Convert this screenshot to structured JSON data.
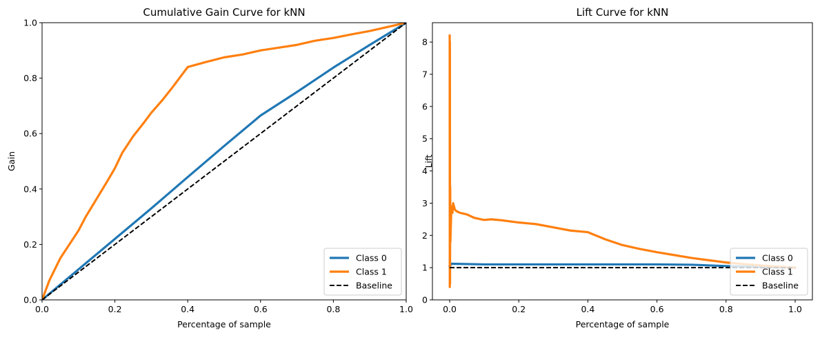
{
  "chart_data": [
    {
      "type": "line",
      "title": "Cumulative Gain Curve for kNN",
      "xlabel": "Percentage of sample",
      "ylabel": "Gain",
      "xlim": [
        0,
        1
      ],
      "ylim": [
        0,
        1
      ],
      "xticks": [
        "0.0",
        "0.2",
        "0.4",
        "0.6",
        "0.8",
        "1.0"
      ],
      "yticks": [
        "0.0",
        "0.2",
        "0.4",
        "0.6",
        "0.8",
        "1.0"
      ],
      "grid": false,
      "legend_position": "lower right",
      "series": [
        {
          "name": "Class 0",
          "color": "#1f77b4",
          "style": "solid",
          "x": [
            0,
            0.1,
            0.2,
            0.3,
            0.4,
            0.5,
            0.6,
            0.7,
            0.8,
            0.9,
            1.0
          ],
          "y": [
            0,
            0.11,
            0.22,
            0.33,
            0.443,
            0.555,
            0.665,
            0.75,
            0.838,
            0.92,
            1.0
          ]
        },
        {
          "name": "Class 1",
          "color": "#ff7f0e",
          "style": "solid",
          "x": [
            0,
            0.02,
            0.05,
            0.08,
            0.1,
            0.12,
            0.15,
            0.18,
            0.2,
            0.22,
            0.25,
            0.28,
            0.3,
            0.33,
            0.36,
            0.38,
            0.4,
            0.45,
            0.5,
            0.55,
            0.6,
            0.65,
            0.7,
            0.75,
            0.8,
            0.85,
            0.9,
            0.95,
            1.0
          ],
          "y": [
            0,
            0.07,
            0.15,
            0.21,
            0.25,
            0.3,
            0.365,
            0.43,
            0.475,
            0.53,
            0.59,
            0.64,
            0.675,
            0.72,
            0.77,
            0.805,
            0.84,
            0.858,
            0.875,
            0.885,
            0.9,
            0.91,
            0.92,
            0.935,
            0.945,
            0.958,
            0.97,
            0.985,
            1.0
          ]
        },
        {
          "name": "Baseline",
          "color": "#000000",
          "style": "dashed",
          "x": [
            0,
            1
          ],
          "y": [
            0,
            1
          ]
        }
      ]
    },
    {
      "type": "line",
      "title": "Lift Curve for kNN",
      "xlabel": "Percentage of sample",
      "ylabel": "Lift",
      "xlim": [
        -0.05,
        1.05
      ],
      "ylim": [
        0,
        8.6
      ],
      "xticks": [
        "0.0",
        "0.2",
        "0.4",
        "0.6",
        "0.8",
        "1.0"
      ],
      "yticks": [
        "0",
        "1",
        "2",
        "3",
        "4",
        "5",
        "6",
        "7",
        "8"
      ],
      "grid": false,
      "legend_position": "lower right",
      "series": [
        {
          "name": "Class 0",
          "color": "#1f77b4",
          "style": "solid",
          "x": [
            0,
            0.005,
            0.1,
            0.2,
            0.3,
            0.4,
            0.5,
            0.6,
            0.7,
            0.8,
            0.9,
            1.0
          ],
          "y": [
            1.05,
            1.12,
            1.1,
            1.1,
            1.1,
            1.1,
            1.1,
            1.1,
            1.09,
            1.05,
            1.02,
            1.0
          ]
        },
        {
          "name": "Class 1",
          "color": "#ff7f0e",
          "style": "solid",
          "x": [
            0,
            0.0003,
            0.0006,
            0.001,
            0.0015,
            0.002,
            0.003,
            0.005,
            0.008,
            0.01,
            0.015,
            0.02,
            0.03,
            0.05,
            0.07,
            0.09,
            0.1,
            0.12,
            0.15,
            0.2,
            0.25,
            0.3,
            0.35,
            0.4,
            0.45,
            0.5,
            0.55,
            0.6,
            0.65,
            0.7,
            0.75,
            0.8,
            0.85,
            0.9,
            0.95,
            1.0
          ],
          "y": [
            8.2,
            0.4,
            8.0,
            0.5,
            3.5,
            1.8,
            2.2,
            2.9,
            2.7,
            3.0,
            2.8,
            2.75,
            2.7,
            2.65,
            2.55,
            2.5,
            2.48,
            2.5,
            2.47,
            2.4,
            2.35,
            2.25,
            2.15,
            2.1,
            1.88,
            1.7,
            1.58,
            1.48,
            1.39,
            1.3,
            1.23,
            1.16,
            1.11,
            1.07,
            1.03,
            1.0
          ]
        },
        {
          "name": "Baseline",
          "color": "#000000",
          "style": "dashed",
          "x": [
            0,
            1
          ],
          "y": [
            1,
            1
          ]
        }
      ]
    }
  ]
}
